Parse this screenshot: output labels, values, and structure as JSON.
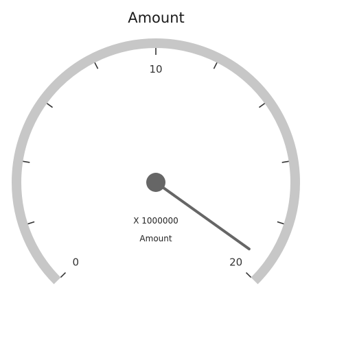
{
  "title": "Amount",
  "gauge": {
    "min": 0,
    "max": 20,
    "value": 19.3,
    "labels": [
      {
        "value": 0,
        "text": "0"
      },
      {
        "value": 10,
        "text": "10"
      },
      {
        "value": 20,
        "text": "20"
      }
    ],
    "multiplier_label": "X 1000000",
    "value_caption": "Amount",
    "colors": {
      "rim": "#c7c7c7",
      "ticks": "#333333",
      "needle": "#666666",
      "cap": "#666666"
    }
  }
}
